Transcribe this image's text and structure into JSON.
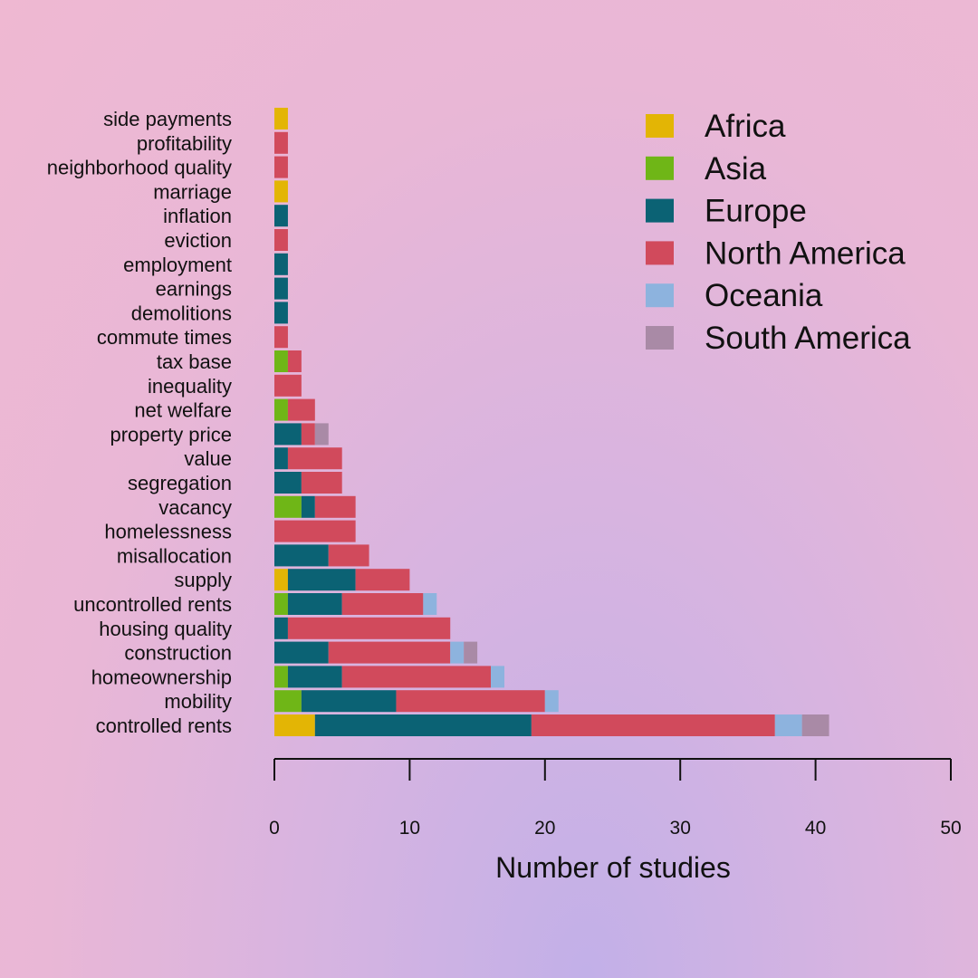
{
  "chart_data": {
    "type": "bar",
    "orientation": "horizontal",
    "stacked": true,
    "xlabel": "Number of studies",
    "xlim": [
      0,
      50
    ],
    "xticks": [
      0,
      10,
      20,
      30,
      40,
      50
    ],
    "grid": false,
    "legend_position": "top-right",
    "categories": [
      "side payments",
      "profitability",
      "neighborhood quality",
      "marriage",
      "inflation",
      "eviction",
      "employment",
      "earnings",
      "demolitions",
      "commute times",
      "tax base",
      "inequality",
      "net welfare",
      "property price",
      "value",
      "segregation",
      "vacancy",
      "homelessness",
      "misallocation",
      "supply",
      "uncontrolled rents",
      "housing quality",
      "construction",
      "homeownership",
      "mobility",
      "controlled rents"
    ],
    "series": [
      {
        "name": "Africa",
        "color": "#e3b505",
        "values": [
          1,
          0,
          0,
          1,
          0,
          0,
          0,
          0,
          0,
          0,
          0,
          0,
          0,
          0,
          0,
          0,
          0,
          0,
          0,
          1,
          0,
          0,
          0,
          0,
          0,
          3
        ]
      },
      {
        "name": "Asia",
        "color": "#6fb617",
        "values": [
          0,
          0,
          0,
          0,
          0,
          0,
          0,
          0,
          0,
          0,
          1,
          0,
          1,
          0,
          0,
          0,
          2,
          0,
          0,
          0,
          1,
          0,
          0,
          1,
          2,
          0
        ]
      },
      {
        "name": "Europe",
        "color": "#0b6274",
        "values": [
          0,
          0,
          0,
          0,
          1,
          0,
          1,
          1,
          1,
          0,
          0,
          0,
          0,
          2,
          1,
          2,
          1,
          0,
          4,
          5,
          4,
          1,
          4,
          4,
          7,
          16
        ]
      },
      {
        "name": "North America",
        "color": "#d14a5c",
        "values": [
          0,
          1,
          1,
          0,
          0,
          1,
          0,
          0,
          0,
          1,
          1,
          2,
          2,
          1,
          4,
          3,
          3,
          6,
          3,
          4,
          6,
          12,
          9,
          11,
          11,
          18
        ]
      },
      {
        "name": "Oceania",
        "color": "#8db3de",
        "values": [
          0,
          0,
          0,
          0,
          0,
          0,
          0,
          0,
          0,
          0,
          0,
          0,
          0,
          0,
          0,
          0,
          0,
          0,
          0,
          0,
          1,
          0,
          1,
          1,
          1,
          2
        ]
      },
      {
        "name": "South America",
        "color": "#a98aa6",
        "values": [
          0,
          0,
          0,
          0,
          0,
          0,
          0,
          0,
          0,
          0,
          0,
          0,
          0,
          1,
          0,
          0,
          0,
          0,
          0,
          0,
          0,
          0,
          1,
          0,
          0,
          2
        ]
      }
    ]
  }
}
